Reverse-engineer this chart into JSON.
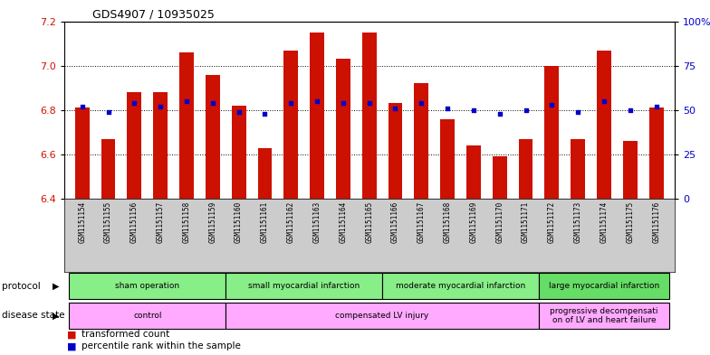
{
  "title": "GDS4907 / 10935025",
  "samples": [
    "GSM1151154",
    "GSM1151155",
    "GSM1151156",
    "GSM1151157",
    "GSM1151158",
    "GSM1151159",
    "GSM1151160",
    "GSM1151161",
    "GSM1151162",
    "GSM1151163",
    "GSM1151164",
    "GSM1151165",
    "GSM1151166",
    "GSM1151167",
    "GSM1151168",
    "GSM1151169",
    "GSM1151170",
    "GSM1151171",
    "GSM1151172",
    "GSM1151173",
    "GSM1151174",
    "GSM1151175",
    "GSM1151176"
  ],
  "transformed_count": [
    6.81,
    6.67,
    6.88,
    6.88,
    7.06,
    6.96,
    6.82,
    6.63,
    7.07,
    7.15,
    7.03,
    7.15,
    6.83,
    6.92,
    6.76,
    6.64,
    6.59,
    6.67,
    7.0,
    6.67,
    7.07,
    6.66,
    6.81
  ],
  "percentile_rank": [
    52,
    49,
    54,
    52,
    55,
    54,
    49,
    48,
    54,
    55,
    54,
    54,
    51,
    54,
    51,
    50,
    48,
    50,
    53,
    49,
    55,
    50,
    52
  ],
  "ylim_left": [
    6.4,
    7.2
  ],
  "ylim_right": [
    0,
    100
  ],
  "yticks_left": [
    6.4,
    6.6,
    6.8,
    7.0,
    7.2
  ],
  "yticks_right": [
    0,
    25,
    50,
    75,
    100
  ],
  "bar_color": "#cc1100",
  "dot_color": "#0000cc",
  "bar_bottom": 6.4,
  "protocol_groups": [
    {
      "label": "sham operation",
      "start": 0,
      "end": 5,
      "color": "#88ee88"
    },
    {
      "label": "small myocardial infarction",
      "start": 6,
      "end": 11,
      "color": "#88ee88"
    },
    {
      "label": "moderate myocardial infarction",
      "start": 12,
      "end": 17,
      "color": "#88ee88"
    },
    {
      "label": "large myocardial infarction",
      "start": 18,
      "end": 22,
      "color": "#66dd66"
    }
  ],
  "disease_groups": [
    {
      "label": "control",
      "start": 0,
      "end": 5,
      "color": "#ffaaff"
    },
    {
      "label": "compensated LV injury",
      "start": 6,
      "end": 17,
      "color": "#ffaaff"
    },
    {
      "label": "progressive decompensati\non of LV and heart failure",
      "start": 18,
      "end": 22,
      "color": "#ffaaff"
    }
  ],
  "xtick_bg": "#cccccc",
  "legend_red_label": "transformed count",
  "legend_blue_label": "percentile rank within the sample"
}
